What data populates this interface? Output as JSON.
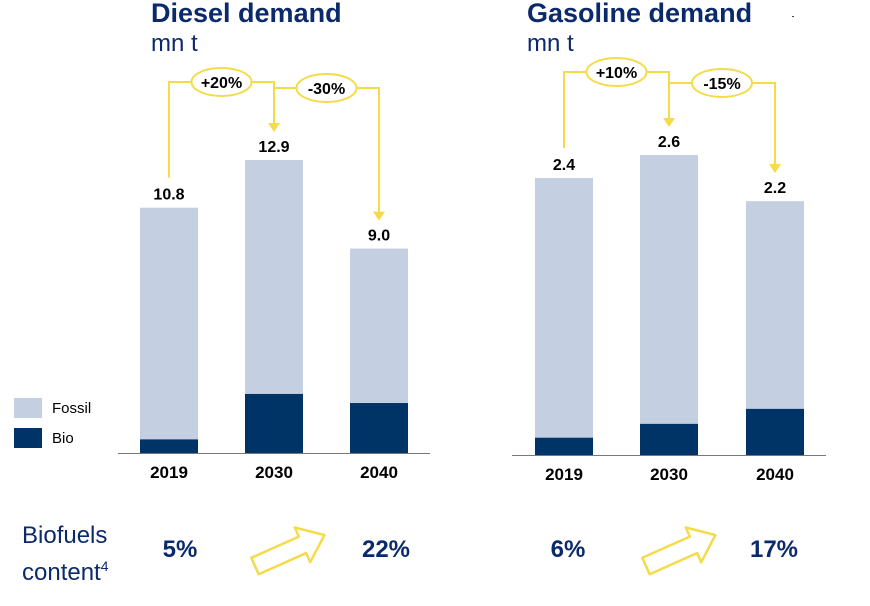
{
  "colors": {
    "fossil": "#c5cfe2",
    "bio": "#003366",
    "accent": "#f5db4a",
    "title": "#0b2a6b"
  },
  "legend": {
    "fossil_label": "Fossil",
    "bio_label": "Bio"
  },
  "biofuels": {
    "label_line1": "Biofuels",
    "label_line2": "content",
    "label_sup": "4",
    "diesel": [
      "5%",
      "22%"
    ],
    "gasoline": [
      "6%",
      "17%"
    ]
  },
  "chart_data": [
    {
      "type": "bar",
      "stacked": true,
      "title": "Diesel demand",
      "subtitle": "mn t",
      "categories": [
        "2019",
        "2030",
        "2040"
      ],
      "series": [
        {
          "name": "Bio",
          "values": [
            0.6,
            2.6,
            2.2
          ]
        },
        {
          "name": "Fossil",
          "values": [
            10.2,
            10.3,
            6.8
          ]
        }
      ],
      "totals": [
        "10.8",
        "12.9",
        "9.0"
      ],
      "total_values": [
        10.8,
        12.9,
        9.0
      ],
      "changes": [
        "+20%",
        "-30%"
      ],
      "ylim": [
        0,
        15
      ]
    },
    {
      "type": "bar",
      "stacked": true,
      "title": "Gasoline demand",
      "subtitle": "mn t",
      "categories": [
        "2019",
        "2030",
        "2040"
      ],
      "series": [
        {
          "name": "Bio",
          "values": [
            0.15,
            0.27,
            0.4
          ]
        },
        {
          "name": "Fossil",
          "values": [
            2.25,
            2.33,
            1.8
          ]
        }
      ],
      "totals": [
        "2.4",
        "2.6",
        "2.2"
      ],
      "total_values": [
        2.4,
        2.6,
        2.2
      ],
      "changes": [
        "+10%",
        "-15%"
      ],
      "ylim": [
        0,
        3.0
      ]
    }
  ]
}
